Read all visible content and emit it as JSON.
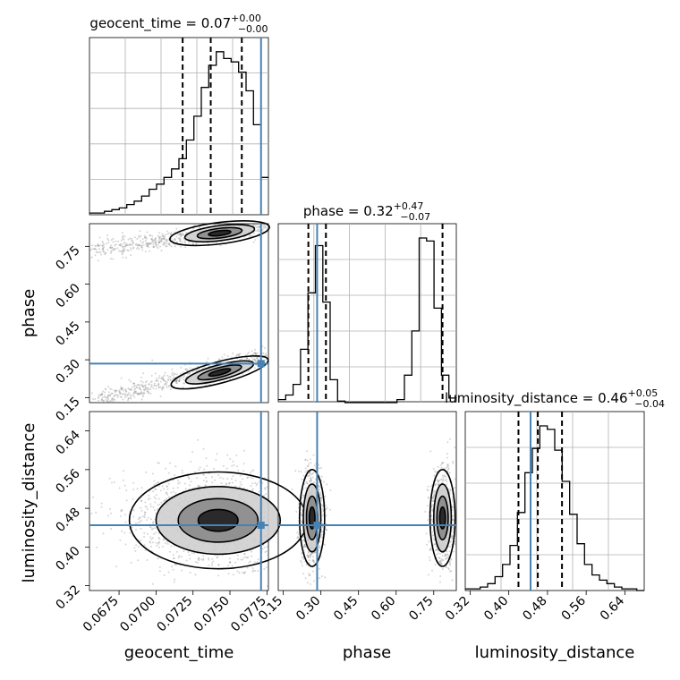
{
  "chart_data": {
    "type": "corner",
    "parameters": [
      "geocent_time",
      "phase",
      "luminosity_distance"
    ],
    "truth_color": "#4682b4",
    "titles": [
      {
        "param": "geocent_time",
        "median": "0.07",
        "upper": "+0.00",
        "lower": "−0.00"
      },
      {
        "param": "phase",
        "median": "0.32",
        "upper": "+0.47",
        "lower": "−0.07"
      },
      {
        "param": "luminosity_distance",
        "median": "0.46",
        "upper": "+0.05",
        "lower": "−0.04"
      }
    ],
    "axes": {
      "geocent_time": {
        "range": [
          0.0655,
          0.0776
        ],
        "ticks": [
          "0.0675",
          "0.0700",
          "0.0725",
          "0.0750",
          "0.0775"
        ],
        "label": "geocent_time"
      },
      "phase": {
        "range": [
          0.13,
          0.84
        ],
        "ticks": [
          "0.15",
          "0.30",
          "0.45",
          "0.60",
          "0.75"
        ],
        "label": "phase"
      },
      "luminosity_distance": {
        "range": [
          0.31,
          0.68
        ],
        "ticks": [
          "0.32",
          "0.40",
          "0.48",
          "0.56",
          "0.64"
        ],
        "label": "luminosity_distance"
      }
    },
    "truths": {
      "geocent_time": 0.0771,
      "phase": 0.285,
      "luminosity_distance": 0.445
    },
    "quantiles": {
      "geocent_time": [
        0.0718,
        0.0737,
        0.0758
      ],
      "phase": [
        0.25,
        0.32,
        0.785
      ],
      "luminosity_distance": [
        0.42,
        0.46,
        0.51
      ]
    },
    "histograms": {
      "geocent_time": [
        1,
        1,
        2,
        3,
        4,
        6,
        8,
        11,
        15,
        18,
        22,
        27,
        33,
        44,
        58,
        75,
        88,
        96,
        92,
        90,
        84,
        73,
        53,
        22
      ],
      "phase": [
        2,
        5,
        12,
        35,
        72,
        103,
        66,
        15,
        1,
        0,
        0,
        0,
        0,
        0,
        0,
        0,
        2,
        18,
        47,
        108,
        106,
        62,
        18,
        3
      ],
      "luminosity_distance": [
        1,
        1,
        2,
        4,
        8,
        15,
        26,
        45,
        68,
        82,
        95,
        93,
        81,
        63,
        44,
        27,
        15,
        9,
        6,
        4,
        2,
        1,
        1,
        0
      ]
    }
  }
}
